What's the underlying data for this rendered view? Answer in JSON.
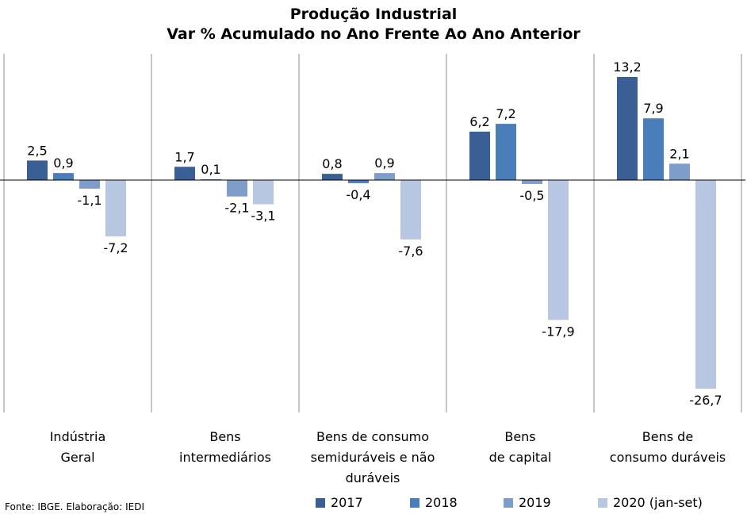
{
  "chart_data": {
    "type": "bar",
    "title": [
      "Produção Industrial",
      "Var % Acumulado no Ano Frente Ao Ano Anterior"
    ],
    "categories": [
      "Indústria\nGeral",
      "Bens\nintermediários",
      "Bens de consumo\nsemiduráveis e não\nduráveis",
      "Bens\nde capital",
      "Bens de\nconsumo duráveis"
    ],
    "series": [
      {
        "name": "2017",
        "color": "#3A5F94",
        "values": [
          2.5,
          1.7,
          0.8,
          6.2,
          13.2
        ],
        "labels": [
          "2,5",
          "1,7",
          "0,8",
          "6,2",
          "13,2"
        ]
      },
      {
        "name": "2018",
        "color": "#4A7EBB",
        "values": [
          0.9,
          0.1,
          -0.4,
          7.2,
          7.9
        ],
        "labels": [
          "0,9",
          "0,1",
          "-0,4",
          "7,2",
          "7,9"
        ]
      },
      {
        "name": "2019",
        "color": "#7F9DCB",
        "values": [
          -1.1,
          -2.1,
          0.9,
          -0.5,
          2.1
        ],
        "labels": [
          "-1,1",
          "-2,1",
          "0,9",
          "-0,5",
          "2,1"
        ]
      },
      {
        "name": "2020 (jan-set)",
        "color": "#B7C6E1",
        "values": [
          -7.2,
          -3.1,
          -7.6,
          -17.9,
          -26.7
        ],
        "labels": [
          "-7,2",
          "-3,1",
          "-7,6",
          "-17,9",
          "-26,7"
        ]
      }
    ],
    "ylim": [
      -30,
      16
    ],
    "grid": false,
    "legend_position": "bottom-right",
    "source": "Fonte: IBGE. Elaboração: IEDI"
  }
}
